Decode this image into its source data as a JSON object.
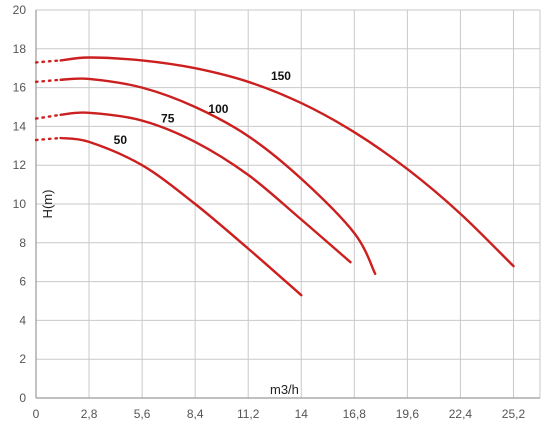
{
  "chart_data": {
    "type": "line",
    "xlabel": "m3/h",
    "ylabel": "H(m)",
    "xlim": [
      0,
      26.6
    ],
    "ylim": [
      0,
      20
    ],
    "x_ticks": [
      0,
      2.8,
      5.6,
      8.4,
      11.2,
      14,
      16.8,
      19.6,
      22.4,
      25.2
    ],
    "x_tick_labels": [
      "0",
      "2,8",
      "5,6",
      "8,4",
      "11,2",
      "14",
      "16,8",
      "19,6",
      "22,4",
      "25,2"
    ],
    "y_ticks": [
      0,
      2,
      4,
      6,
      8,
      10,
      12,
      14,
      16,
      18,
      20
    ],
    "y_tick_labels": [
      "0",
      "2",
      "4",
      "6",
      "8",
      "10",
      "12",
      "14",
      "16",
      "18",
      "20"
    ],
    "grid": true,
    "line_color": "#cc1f1f",
    "series": [
      {
        "name": "150",
        "dotted": [
          [
            0,
            17.3
          ],
          [
            1.3,
            17.4
          ]
        ],
        "points": [
          [
            1.3,
            17.4
          ],
          [
            2.8,
            17.55
          ],
          [
            5.6,
            17.4
          ],
          [
            8.4,
            17.0
          ],
          [
            11.2,
            16.3
          ],
          [
            14,
            15.2
          ],
          [
            16.8,
            13.7
          ],
          [
            19.6,
            11.8
          ],
          [
            22.4,
            9.5
          ],
          [
            25.2,
            6.8
          ]
        ],
        "label_at": [
          12.4,
          16.4
        ]
      },
      {
        "name": "100",
        "dotted": [
          [
            0,
            16.3
          ],
          [
            1.3,
            16.4
          ]
        ],
        "points": [
          [
            1.3,
            16.4
          ],
          [
            2.8,
            16.45
          ],
          [
            5.6,
            16.0
          ],
          [
            8.4,
            15.0
          ],
          [
            11.2,
            13.5
          ],
          [
            14,
            11.3
          ],
          [
            16.8,
            8.5
          ],
          [
            17.9,
            6.4
          ]
        ],
        "label_at": [
          9.1,
          14.7
        ]
      },
      {
        "name": "75",
        "dotted": [
          [
            0,
            14.4
          ],
          [
            1.3,
            14.6
          ]
        ],
        "points": [
          [
            1.3,
            14.6
          ],
          [
            2.8,
            14.7
          ],
          [
            5.6,
            14.3
          ],
          [
            8.4,
            13.2
          ],
          [
            11.2,
            11.5
          ],
          [
            14,
            9.2
          ],
          [
            16.6,
            7.0
          ]
        ],
        "label_at": [
          6.6,
          14.2
        ]
      },
      {
        "name": "50",
        "dotted": [
          [
            0,
            13.3
          ],
          [
            1.3,
            13.4
          ]
        ],
        "points": [
          [
            1.3,
            13.4
          ],
          [
            2.8,
            13.2
          ],
          [
            5.6,
            12.0
          ],
          [
            8.4,
            10.0
          ],
          [
            11.2,
            7.7
          ],
          [
            14,
            5.3
          ]
        ],
        "label_at": [
          4.1,
          13.1
        ]
      }
    ]
  }
}
